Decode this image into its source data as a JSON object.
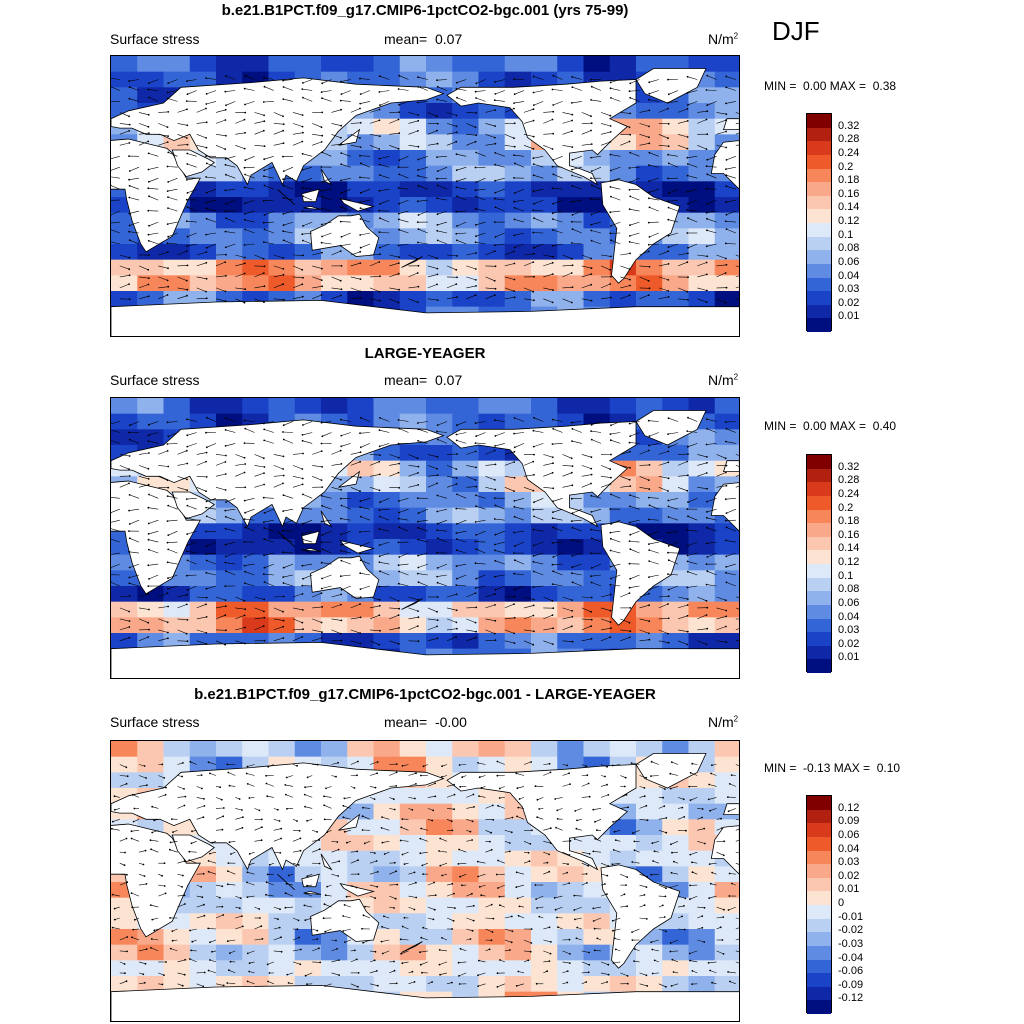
{
  "season": "DJF",
  "panels": [
    {
      "title": "b.e21.B1PCT.f09_g17.CMIP6-1pctCO2-bgc.001 (yrs 75-99)",
      "variable": "Surface stress",
      "mean_label": "mean=",
      "mean_value": "0.07",
      "units": "N/m",
      "units_exp": "2",
      "min_label": "MIN =",
      "min_value": "0.00",
      "max_label": "MAX =",
      "max_value": "0.38",
      "colorbar_levels": [
        "0.32",
        "0.28",
        "0.24",
        "0.2",
        "0.18",
        "0.16",
        "0.14",
        "0.12",
        "0.1",
        "0.08",
        "0.06",
        "0.04",
        "0.03",
        "0.02",
        "0.01"
      ]
    },
    {
      "title": "LARGE-YEAGER",
      "variable": "Surface stress",
      "mean_label": "mean=",
      "mean_value": "0.07",
      "units": "N/m",
      "units_exp": "2",
      "min_label": "MIN =",
      "min_value": "0.00",
      "max_label": "MAX =",
      "max_value": "0.40",
      "colorbar_levels": [
        "0.32",
        "0.28",
        "0.24",
        "0.2",
        "0.18",
        "0.16",
        "0.14",
        "0.12",
        "0.1",
        "0.08",
        "0.06",
        "0.04",
        "0.03",
        "0.02",
        "0.01"
      ]
    },
    {
      "title": "b.e21.B1PCT.f09_g17.CMIP6-1pctCO2-bgc.001 - LARGE-YEAGER",
      "variable": "Surface stress",
      "mean_label": "mean=",
      "mean_value": "-0.00",
      "units": "N/m",
      "units_exp": "2",
      "min_label": "MIN =",
      "min_value": "-0.13",
      "max_label": "MAX =",
      "max_value": "0.10",
      "colorbar_levels": [
        "0.12",
        "0.09",
        "0.06",
        "0.04",
        "0.03",
        "0.02",
        "0.01",
        "0",
        "-0.01",
        "-0.02",
        "-0.03",
        "-0.04",
        "-0.06",
        "-0.09",
        "-0.12"
      ]
    }
  ],
  "colors": {
    "scale": [
      "#800000",
      "#b2200f",
      "#d83a1b",
      "#ef5a2a",
      "#f7865a",
      "#f9a98a",
      "#fbc7b0",
      "#fde4d2",
      "#dde9f8",
      "#b9d0f3",
      "#8fb1ec",
      "#5f8ce2",
      "#3465d6",
      "#1a43c8",
      "#0f28a8",
      "#000f80"
    ],
    "land": "#ffffff",
    "coast": "#000000"
  }
}
